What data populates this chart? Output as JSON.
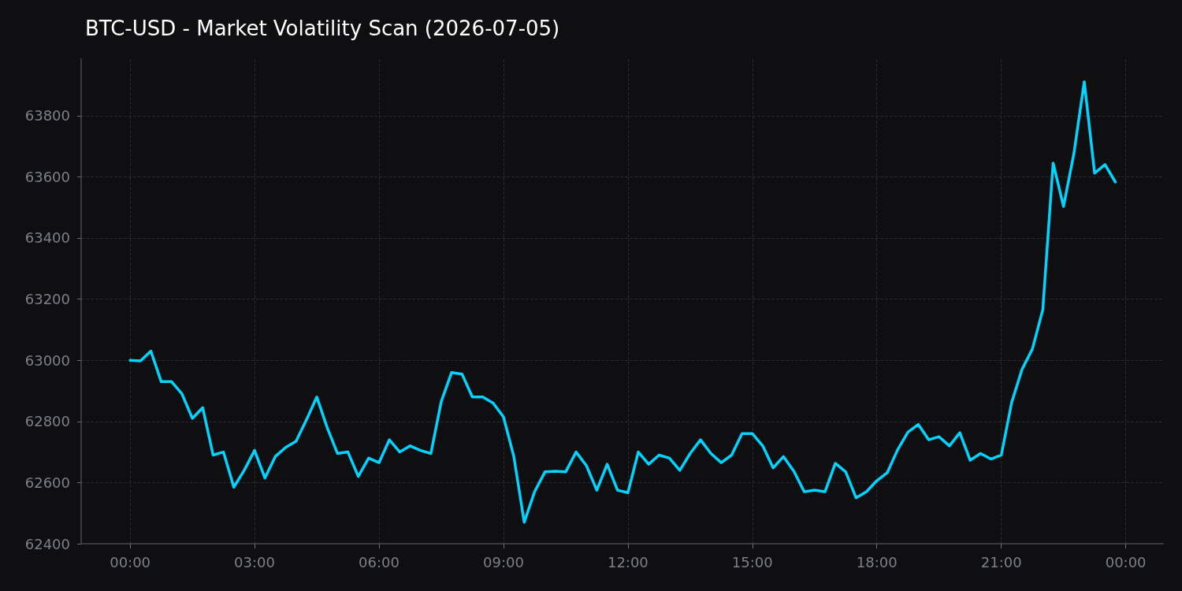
{
  "chart_data": {
    "type": "line",
    "title": "BTC-USD - Market Volatility Scan (2026-07-05)",
    "x": [
      0,
      0.25,
      0.5,
      0.75,
      1,
      1.25,
      1.5,
      1.75,
      2,
      2.25,
      2.5,
      2.75,
      3,
      3.25,
      3.5,
      3.75,
      4,
      4.25,
      4.5,
      4.75,
      5,
      5.25,
      5.5,
      5.75,
      6,
      6.25,
      6.5,
      6.75,
      7,
      7.25,
      7.5,
      7.75,
      8,
      8.25,
      8.5,
      8.75,
      9,
      9.25,
      9.5,
      9.75,
      10,
      10.25,
      10.5,
      10.75,
      11,
      11.25,
      11.5,
      11.75,
      12,
      12.25,
      12.5,
      12.75,
      13,
      13.25,
      13.5,
      13.75,
      14,
      14.25,
      14.5,
      14.75,
      15,
      15.25,
      15.5,
      15.75,
      16,
      16.25,
      16.5,
      16.75,
      17,
      17.25,
      17.5,
      17.75,
      18,
      18.25,
      18.5,
      18.75,
      19,
      19.25,
      19.5,
      19.75,
      20,
      20.25,
      20.5,
      20.75,
      21,
      21.25,
      21.5,
      21.75,
      22,
      22.25,
      22.5,
      22.75,
      23,
      23.25,
      23.5,
      23.75
    ],
    "series": [
      {
        "color": "#00d4ff",
        "values": [
          63000,
          62998,
          63030,
          62930,
          62930,
          62890,
          62810,
          62845,
          62690,
          62700,
          62585,
          62640,
          62705,
          62615,
          62685,
          62715,
          62735,
          62805,
          62880,
          62780,
          62695,
          62700,
          62620,
          62680,
          62665,
          62740,
          62700,
          62720,
          62705,
          62695,
          62865,
          62960,
          62955,
          62880,
          62880,
          62860,
          62815,
          62685,
          62470,
          62570,
          62635,
          62637,
          62635,
          62700,
          62655,
          62575,
          62660,
          62575,
          62567,
          62700,
          62660,
          62690,
          62680,
          62640,
          62695,
          62740,
          62695,
          62665,
          62690,
          62760,
          62760,
          62720,
          62648,
          62685,
          62637,
          62570,
          62575,
          62570,
          62663,
          62635,
          62550,
          62570,
          62606,
          62632,
          62707,
          62765,
          62790,
          62740,
          62750,
          62720,
          62763,
          62673,
          62695,
          62677,
          62690,
          62862,
          62970,
          63037,
          63165,
          63645,
          63503,
          63676,
          63911,
          63612,
          63640,
          63583
        ]
      }
    ],
    "xlim": [
      -1.18,
      24.9
    ],
    "xticks": [
      {
        "value": 0,
        "label": "00:00"
      },
      {
        "value": 3,
        "label": "03:00"
      },
      {
        "value": 6,
        "label": "06:00"
      },
      {
        "value": 9,
        "label": "09:00"
      },
      {
        "value": 12,
        "label": "12:00"
      },
      {
        "value": 15,
        "label": "15:00"
      },
      {
        "value": 18,
        "label": "18:00"
      },
      {
        "value": 21,
        "label": "21:00"
      },
      {
        "value": 24,
        "label": "00:00"
      }
    ],
    "ylim": [
      62400,
      63985
    ],
    "yticks": [
      62400,
      62600,
      62800,
      63000,
      63200,
      63400,
      63600,
      63800
    ],
    "grid": true,
    "marker": "none",
    "line_style": "solid"
  }
}
